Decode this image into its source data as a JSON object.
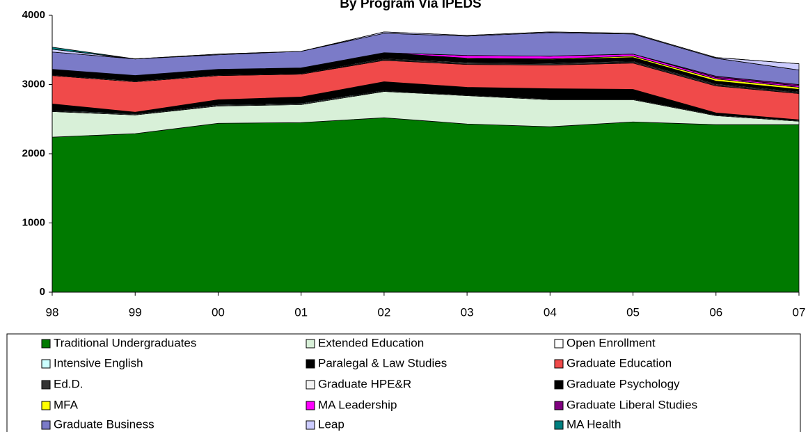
{
  "chart_data": {
    "type": "stacked_area",
    "title": "By Program Via IPEDS",
    "categories": [
      "98",
      "99",
      "00",
      "01",
      "02",
      "03",
      "04",
      "05",
      "06",
      "07"
    ],
    "ylim": [
      0,
      4000
    ],
    "yticks": [
      0,
      1000,
      2000,
      3000,
      4000
    ],
    "series": [
      {
        "name": "Traditional Undergraduates",
        "color": "#007a00",
        "values": [
          2240,
          2290,
          2440,
          2450,
          2520,
          2430,
          2390,
          2460,
          2420,
          2420
        ]
      },
      {
        "name": "Extended Education",
        "color": "#d8f0d8",
        "values": [
          370,
          270,
          250,
          260,
          380,
          410,
          390,
          320,
          130,
          50
        ]
      },
      {
        "name": "Open Enrollment",
        "color": "#ffffff",
        "values": [
          10,
          10,
          10,
          10,
          10,
          10,
          10,
          10,
          10,
          10
        ]
      },
      {
        "name": "Intensive English",
        "color": "#ccffff",
        "values": [
          10,
          10,
          10,
          10,
          10,
          0,
          0,
          0,
          0,
          0
        ]
      },
      {
        "name": "Paralegal & Law Studies",
        "color": "#000000",
        "values": [
          90,
          20,
          70,
          90,
          120,
          110,
          150,
          140,
          30,
          10
        ]
      },
      {
        "name": "Graduate Education",
        "color": "#f04a4a",
        "values": [
          410,
          440,
          350,
          330,
          310,
          330,
          340,
          380,
          390,
          380
        ]
      },
      {
        "name": "Ed.D.",
        "color": "#333333",
        "values": [
          0,
          0,
          0,
          0,
          20,
          20,
          20,
          20,
          20,
          20
        ]
      },
      {
        "name": "Graduate HPE&R",
        "color": "#f2f2f2",
        "values": [
          10,
          10,
          10,
          10,
          10,
          10,
          10,
          10,
          10,
          10
        ]
      },
      {
        "name": "Graduate Psychology",
        "color": "#000000",
        "values": [
          80,
          80,
          80,
          80,
          80,
          50,
          50,
          50,
          40,
          30
        ]
      },
      {
        "name": "MFA",
        "color": "#ffff00",
        "values": [
          0,
          0,
          0,
          0,
          0,
          10,
          10,
          20,
          30,
          30
        ]
      },
      {
        "name": "MA  Leadership",
        "color": "#ff00ff",
        "values": [
          0,
          0,
          0,
          0,
          0,
          40,
          40,
          30,
          20,
          20
        ]
      },
      {
        "name": "Graduate Liberal Studies",
        "color": "#800080",
        "values": [
          0,
          0,
          0,
          0,
          0,
          0,
          0,
          0,
          20,
          20
        ]
      },
      {
        "name": "Graduate Business",
        "color": "#7b7bc8",
        "values": [
          250,
          240,
          210,
          240,
          280,
          280,
          340,
          290,
          260,
          210
        ]
      },
      {
        "name": "Leap",
        "color": "#ccccff",
        "values": [
          40,
          0,
          10,
          0,
          20,
          10,
          10,
          10,
          10,
          90
        ]
      },
      {
        "name": "MA Health",
        "color": "#008080",
        "values": [
          30,
          0,
          0,
          0,
          0,
          0,
          0,
          0,
          0,
          0
        ]
      }
    ]
  }
}
